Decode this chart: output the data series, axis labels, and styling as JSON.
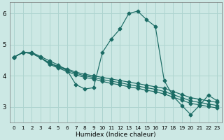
{
  "xlabel": "Humidex (Indice chaleur)",
  "xlim": [
    -0.5,
    23.5
  ],
  "ylim": [
    2.5,
    6.35
  ],
  "yticks": [
    3,
    4,
    5,
    6
  ],
  "xticks": [
    0,
    1,
    2,
    3,
    4,
    5,
    6,
    7,
    8,
    9,
    10,
    11,
    12,
    13,
    14,
    15,
    16,
    17,
    18,
    19,
    20,
    21,
    22,
    23
  ],
  "bg_color": "#cce8e4",
  "line_color": "#1a6b64",
  "grid_color": "#aed4cf",
  "lines": [
    {
      "x": [
        0,
        1,
        2,
        3,
        4,
        5,
        6,
        7,
        8,
        9,
        10,
        11,
        12,
        13,
        14,
        15,
        16,
        17,
        18,
        19,
        20,
        21,
        22,
        23
      ],
      "y": [
        4.6,
        4.75,
        4.75,
        4.62,
        4.48,
        4.35,
        4.18,
        3.72,
        3.58,
        3.62,
        4.75,
        5.18,
        5.5,
        6.0,
        6.07,
        5.8,
        5.58,
        3.85,
        3.35,
        3.05,
        2.76,
        3.05,
        3.38,
        3.2
      ],
      "marker": "D",
      "markersize": 2.5
    },
    {
      "x": [
        0,
        1,
        2,
        3,
        4,
        5,
        6,
        7,
        8,
        9,
        10,
        11,
        12,
        13,
        14,
        15,
        16,
        17,
        18,
        19,
        20,
        21,
        22,
        23
      ],
      "y": [
        4.6,
        4.75,
        4.72,
        4.58,
        4.42,
        4.3,
        4.22,
        4.12,
        4.05,
        4.0,
        3.95,
        3.9,
        3.85,
        3.8,
        3.75,
        3.7,
        3.65,
        3.6,
        3.5,
        3.4,
        3.3,
        3.25,
        3.2,
        3.15
      ],
      "marker": "D",
      "markersize": 2.5
    },
    {
      "x": [
        0,
        1,
        2,
        3,
        4,
        5,
        6,
        7,
        8,
        9,
        10,
        11,
        12,
        13,
        14,
        15,
        16,
        17,
        18,
        19,
        20,
        21,
        22,
        23
      ],
      "y": [
        4.6,
        4.75,
        4.72,
        4.58,
        4.4,
        4.28,
        4.18,
        4.08,
        4.0,
        3.95,
        3.88,
        3.83,
        3.78,
        3.72,
        3.67,
        3.62,
        3.57,
        3.5,
        3.4,
        3.3,
        3.2,
        3.15,
        3.1,
        3.05
      ],
      "marker": "D",
      "markersize": 2.5
    },
    {
      "x": [
        0,
        1,
        2,
        3,
        4,
        5,
        6,
        7,
        8,
        9,
        10,
        11,
        12,
        13,
        14,
        15,
        16,
        17,
        18,
        19,
        20,
        21,
        22,
        23
      ],
      "y": [
        4.6,
        4.75,
        4.72,
        4.58,
        4.37,
        4.25,
        4.14,
        4.03,
        3.95,
        3.9,
        3.82,
        3.76,
        3.71,
        3.65,
        3.6,
        3.54,
        3.49,
        3.42,
        3.32,
        3.22,
        3.12,
        3.07,
        3.02,
        2.97
      ],
      "marker": "D",
      "markersize": 2.5
    }
  ]
}
